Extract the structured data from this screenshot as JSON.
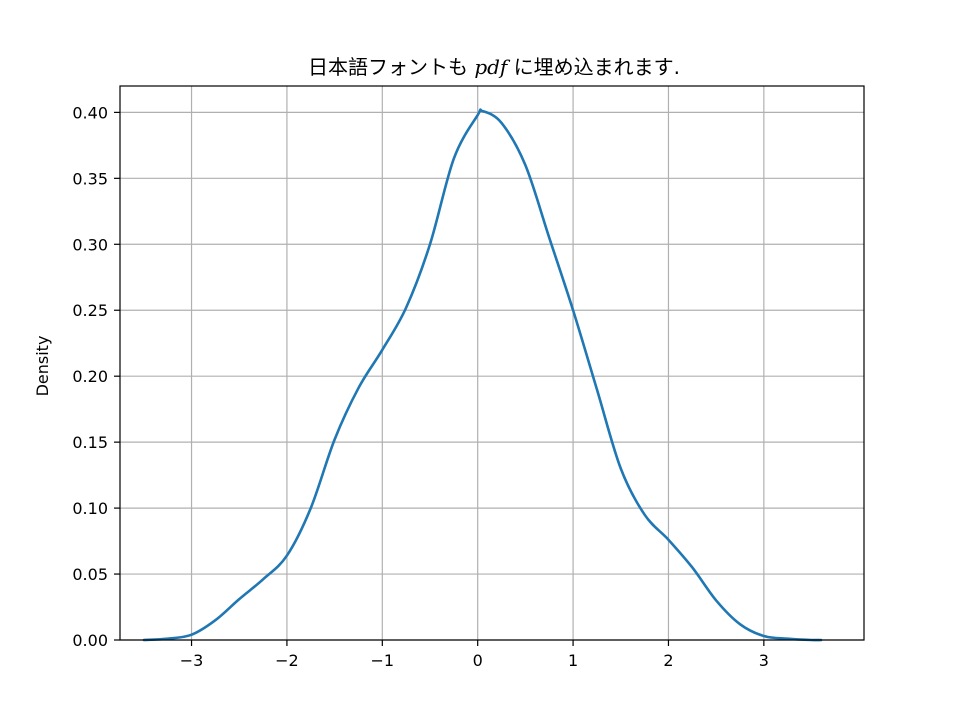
{
  "chart_data": {
    "type": "line",
    "title": {
      "before": "日本語フォントも ",
      "math": "pdf",
      "after": " に埋め込まれます."
    },
    "xlabel": "",
    "ylabel": "Density",
    "xlim": [
      -3.75,
      4.05
    ],
    "ylim": [
      0,
      0.42
    ],
    "grid": true,
    "xticks": [
      -3,
      -2,
      -1,
      0,
      1,
      2,
      3
    ],
    "xtick_labels": [
      "−3",
      "−2",
      "−1",
      "0",
      "1",
      "2",
      "3"
    ],
    "yticks": [
      0,
      0.05,
      0.1,
      0.15,
      0.2,
      0.25,
      0.3,
      0.35,
      0.4
    ],
    "ytick_labels": [
      "0.00",
      "0.05",
      "0.10",
      "0.15",
      "0.20",
      "0.25",
      "0.30",
      "0.35",
      "0.40"
    ],
    "series": [
      {
        "color": "#1f77b4",
        "x": [
          -3.5,
          -3.25,
          -3.0,
          -2.75,
          -2.5,
          -2.25,
          -2.0,
          -1.75,
          -1.5,
          -1.25,
          -1.0,
          -0.75,
          -0.5,
          -0.25,
          0.0,
          0.05,
          0.25,
          0.5,
          0.75,
          1.0,
          1.25,
          1.5,
          1.75,
          2.0,
          2.25,
          2.5,
          2.75,
          3.0,
          3.25,
          3.5,
          3.6
        ],
        "y": [
          0.0,
          0.001,
          0.004,
          0.015,
          0.031,
          0.046,
          0.064,
          0.1,
          0.152,
          0.191,
          0.22,
          0.252,
          0.3,
          0.365,
          0.398,
          0.401,
          0.392,
          0.36,
          0.305,
          0.25,
          0.19,
          0.13,
          0.095,
          0.076,
          0.055,
          0.03,
          0.012,
          0.003,
          0.001,
          0.0,
          0.0
        ]
      }
    ]
  }
}
